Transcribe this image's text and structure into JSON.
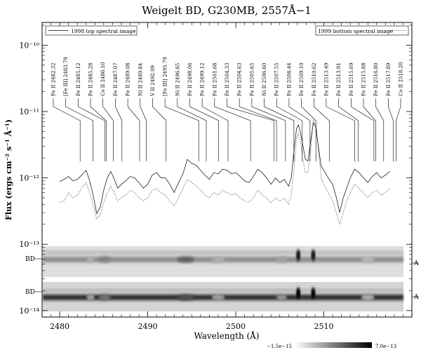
{
  "chart_data": {
    "type": "line",
    "title": "Weigelt BD, G230MB, 2557Å−1",
    "xlabel": "Wavelength (Å)",
    "ylabel": "Flux (ergs cm⁻² s⁻¹ Å⁻¹)",
    "xlim": [
      2478,
      2520
    ],
    "ylim": [
      8e-15,
      2.2e-10
    ],
    "yscale": "log",
    "x_ticks": [
      2480,
      2490,
      2500,
      2510
    ],
    "y_ticks": [
      {
        "value": 1e-10,
        "label": "10⁻¹⁰"
      },
      {
        "value": 1e-11,
        "label": "10⁻¹¹"
      },
      {
        "value": 1e-12,
        "label": "10⁻¹²"
      },
      {
        "value": 1e-13,
        "label": "10⁻¹³"
      },
      {
        "value": 1e-14,
        "label": "10⁻¹⁴"
      }
    ],
    "legend": [
      {
        "label": "1998 top spectral image",
        "style": "solid",
        "position": "top-left"
      },
      {
        "label": "1999 bottom spectral image",
        "style": "dotted",
        "position": "top-right"
      }
    ],
    "series": [
      {
        "name": "1998 top spectral image",
        "style": "solid",
        "x": [
          2480.0,
          2480.5,
          2481.0,
          2481.5,
          2482.0,
          2482.5,
          2483.0,
          2483.4,
          2483.8,
          2484.2,
          2484.6,
          2485.0,
          2485.4,
          2485.8,
          2486.2,
          2486.6,
          2487.0,
          2487.5,
          2488.0,
          2488.5,
          2489.0,
          2489.5,
          2490.0,
          2490.5,
          2491.0,
          2491.5,
          2492.0,
          2492.5,
          2493.0,
          2493.5,
          2494.0,
          2494.5,
          2495.0,
          2495.5,
          2496.0,
          2496.5,
          2497.0,
          2497.5,
          2498.0,
          2498.5,
          2499.0,
          2499.5,
          2500.0,
          2500.5,
          2501.0,
          2501.5,
          2502.0,
          2502.5,
          2503.0,
          2503.5,
          2504.0,
          2504.5,
          2505.0,
          2505.5,
          2506.0,
          2506.3,
          2506.6,
          2506.9,
          2507.1,
          2507.3,
          2507.6,
          2507.9,
          2508.2,
          2508.5,
          2508.8,
          2509.1,
          2509.4,
          2509.7,
          2510.0,
          2510.5,
          2511.0,
          2511.4,
          2511.8,
          2512.2,
          2512.6,
          2513.0,
          2513.5,
          2514.0,
          2514.5,
          2515.0,
          2515.5,
          2516.0,
          2516.5,
          2517.0,
          2517.5
        ],
        "y": [
          8.8e-13,
          9.5e-13,
          1.05e-12,
          9e-13,
          9.5e-13,
          1.1e-12,
          1.3e-12,
          9e-13,
          5.5e-13,
          2.9e-13,
          3.6e-13,
          6.5e-13,
          1e-12,
          1.25e-12,
          9.5e-13,
          7e-13,
          8e-13,
          9e-13,
          1.05e-12,
          1e-12,
          8.5e-13,
          7e-13,
          8e-13,
          1.1e-12,
          1.2e-12,
          1e-12,
          1e-12,
          8e-13,
          6e-13,
          8.5e-13,
          1.15e-12,
          1.9e-12,
          1.65e-12,
          1.55e-12,
          1.3e-12,
          1.1e-12,
          9.5e-13,
          1.2e-12,
          1.15e-12,
          1.35e-12,
          1.3e-12,
          1.15e-12,
          1.2e-12,
          1.05e-12,
          9e-13,
          8.5e-13,
          1.05e-12,
          1.35e-12,
          1.2e-12,
          1e-12,
          8e-13,
          1e-12,
          8.5e-13,
          9.5e-13,
          7.5e-13,
          1e-12,
          2.5e-12,
          5.5e-12,
          6.3e-12,
          5.2e-12,
          3.2e-12,
          1.9e-12,
          1.8e-12,
          3.5e-12,
          6.8e-12,
          5.8e-12,
          2.8e-12,
          1.5e-12,
          1.3e-12,
          1e-12,
          8e-13,
          5.2e-13,
          3e-13,
          5e-13,
          7e-13,
          1e-12,
          1.35e-12,
          1.2e-12,
          1e-12,
          8.5e-13,
          1.05e-12,
          1.2e-12,
          1e-12,
          1.1e-12,
          1.25e-12
        ]
      },
      {
        "name": "1999 bottom spectral image",
        "style": "dotted",
        "x": [
          2480.0,
          2480.5,
          2481.0,
          2481.5,
          2482.0,
          2482.5,
          2483.0,
          2483.4,
          2483.8,
          2484.2,
          2484.6,
          2485.0,
          2485.4,
          2485.8,
          2486.2,
          2486.6,
          2487.0,
          2487.5,
          2488.0,
          2488.5,
          2489.0,
          2489.5,
          2490.0,
          2490.5,
          2491.0,
          2491.5,
          2492.0,
          2492.5,
          2493.0,
          2493.5,
          2494.0,
          2494.5,
          2495.0,
          2495.5,
          2496.0,
          2496.5,
          2497.0,
          2497.5,
          2498.0,
          2498.5,
          2499.0,
          2499.5,
          2500.0,
          2500.5,
          2501.0,
          2501.5,
          2502.0,
          2502.5,
          2503.0,
          2503.5,
          2504.0,
          2504.5,
          2505.0,
          2505.5,
          2506.0,
          2506.3,
          2506.6,
          2506.9,
          2507.1,
          2507.3,
          2507.6,
          2507.9,
          2508.2,
          2508.5,
          2508.8,
          2509.1,
          2509.4,
          2509.7,
          2510.0,
          2510.5,
          2511.0,
          2511.4,
          2511.8,
          2512.2,
          2512.6,
          2513.0,
          2513.5,
          2514.0,
          2514.5,
          2515.0,
          2515.5,
          2516.0,
          2516.5,
          2517.0,
          2517.5
        ],
        "y": [
          4.3e-13,
          4.5e-13,
          6e-13,
          5e-13,
          5.5e-13,
          7e-13,
          8.5e-13,
          6e-13,
          3.8e-13,
          2.4e-13,
          2.8e-13,
          4.2e-13,
          6e-13,
          7.5e-13,
          6e-13,
          4.5e-13,
          5e-13,
          5.5e-13,
          6.5e-13,
          6e-13,
          5e-13,
          4.5e-13,
          5e-13,
          6.5e-13,
          7e-13,
          6e-13,
          5.5e-13,
          4.5e-13,
          3.8e-13,
          5e-13,
          7e-13,
          9.5e-13,
          8.5e-13,
          7.5e-13,
          6.5e-13,
          5.5e-13,
          5e-13,
          6e-13,
          5.5e-13,
          6.5e-13,
          6e-13,
          5.5e-13,
          5.8e-13,
          5e-13,
          4.5e-13,
          4.3e-13,
          5e-13,
          6.5e-13,
          5.5e-13,
          5e-13,
          4.2e-13,
          5e-13,
          4.5e-13,
          5e-13,
          4e-13,
          5.5e-13,
          1.3e-12,
          3.8e-12,
          4.7e-12,
          3.8e-12,
          2e-12,
          1.2e-12,
          1.2e-12,
          2.5e-12,
          7.7e-12,
          6.2e-12,
          2.5e-12,
          1e-12,
          8e-13,
          6e-13,
          4.5e-13,
          3e-13,
          2e-13,
          3e-13,
          4.5e-13,
          6e-13,
          8e-13,
          7e-13,
          6e-13,
          5e-13,
          6e-13,
          6.5e-13,
          5.5e-13,
          6e-13,
          7e-13
        ]
      }
    ],
    "line_ids": [
      {
        "label": "Fe II 2482.32",
        "wavelength": 2482.32
      },
      {
        "label": "[Fe III] 2483.79",
        "wavelength": 2483.79
      },
      {
        "label": "Fe II 2485.12",
        "wavelength": 2485.12
      },
      {
        "label": "Fe II 2485.28",
        "wavelength": 2485.28
      },
      {
        "label": "Co II 2486.10",
        "wavelength": 2486.1
      },
      {
        "label": "Fe II 2487.07",
        "wavelength": 2487.07
      },
      {
        "label": "Fe II 2489.08",
        "wavelength": 2489.08
      },
      {
        "label": "Ni II 2489.84",
        "wavelength": 2489.84
      },
      {
        "label": "V II 2492.09",
        "wavelength": 2492.09
      },
      {
        "label": "[Fe III] 2495.79",
        "wavelength": 2495.79
      },
      {
        "label": "Ni II 2496.65",
        "wavelength": 2496.65
      },
      {
        "label": "Fe II 2498.06",
        "wavelength": 2498.06
      },
      {
        "label": "Fe II 2499.12",
        "wavelength": 2499.12
      },
      {
        "label": "Fe II 2501.68",
        "wavelength": 2501.68
      },
      {
        "label": "Fe II 2504.33",
        "wavelength": 2504.33
      },
      {
        "label": "Fe II 2504.63",
        "wavelength": 2504.63
      },
      {
        "label": "Fe II 2505.65",
        "wavelength": 2505.65
      },
      {
        "label": "Ni II 2506.60",
        "wavelength": 2506.6
      },
      {
        "label": "Fe II 2507.55",
        "wavelength": 2507.55
      },
      {
        "label": "Fe II 2508.44",
        "wavelength": 2508.44
      },
      {
        "label": "Fe II 2509.10",
        "wavelength": 2509.1
      },
      {
        "label": "Fe II 2510.62",
        "wavelength": 2510.62
      },
      {
        "label": "Fe II 2513.49",
        "wavelength": 2513.49
      },
      {
        "label": "Fe II 2513.91",
        "wavelength": 2513.91
      },
      {
        "label": "Fe II 2515.69",
        "wavelength": 2515.69
      },
      {
        "label": "Fe II 2515.88",
        "wavelength": 2515.88
      },
      {
        "label": "Fe II 2516.80",
        "wavelength": 2516.8
      },
      {
        "label": "Fe II 2517.89",
        "wavelength": 2517.89
      },
      {
        "label": "Co II 2518.20",
        "wavelength": 2518.2
      }
    ],
    "spectral_images": {
      "strip_labels": [
        {
          "left": "BD",
          "right": "A"
        },
        {
          "left": "BD",
          "right": "A"
        }
      ],
      "colorbar": {
        "min_label": "−1.5e−15",
        "max_label": "7.0e−13"
      }
    }
  }
}
